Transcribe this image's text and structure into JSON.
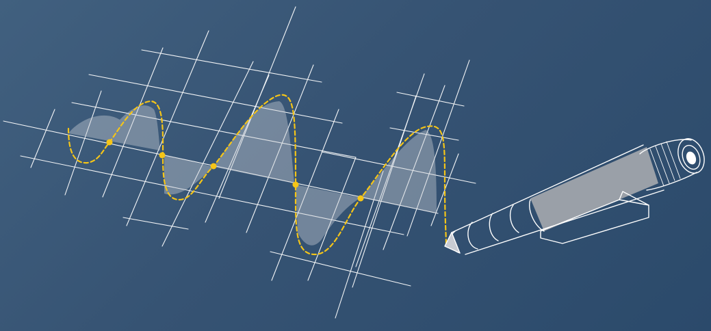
{
  "illustration": {
    "subject": "pen-drawing-dashed-wave-over-grid",
    "icons": [
      "pen-icon",
      "grid-icon",
      "wave-icon"
    ],
    "colors": {
      "background_light": "#41607f",
      "background_dark": "#2b4a6b",
      "grid_line": "#ffffff",
      "wave_dashed": "#f5c518",
      "wave_fill": "#c9ccd3",
      "pen_body": "#9aa0a8"
    },
    "wave_points_count": 5
  }
}
